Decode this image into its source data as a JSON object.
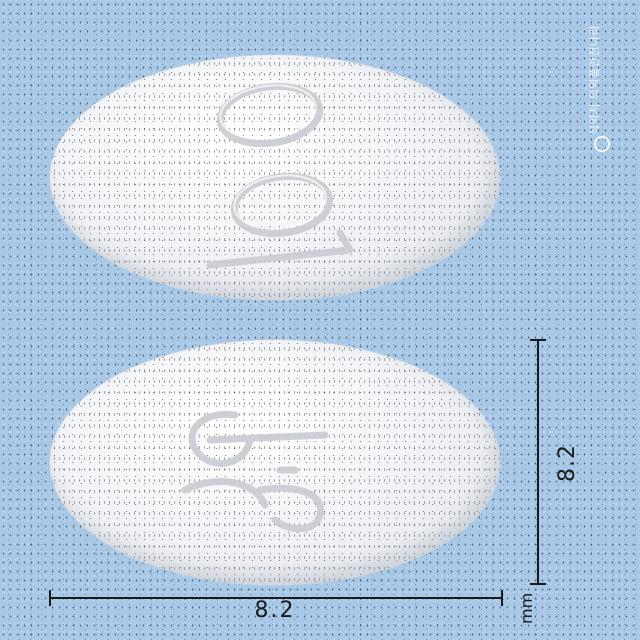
{
  "image": {
    "subject": "pill-identification-photo",
    "background_color": "#a8c8e8"
  },
  "pills": [
    {
      "id": "front",
      "imprint": "100",
      "color": "#f2f3f6",
      "shape": "oval"
    },
    {
      "id": "back",
      "imprint": "GL",
      "color": "#f2f3f6",
      "shape": "oval"
    }
  ],
  "dimensions": {
    "height_value": "8.2",
    "width_value": "8.2",
    "unit": "mm"
  },
  "watermark": {
    "text": "식약처 의약품안전나라"
  }
}
